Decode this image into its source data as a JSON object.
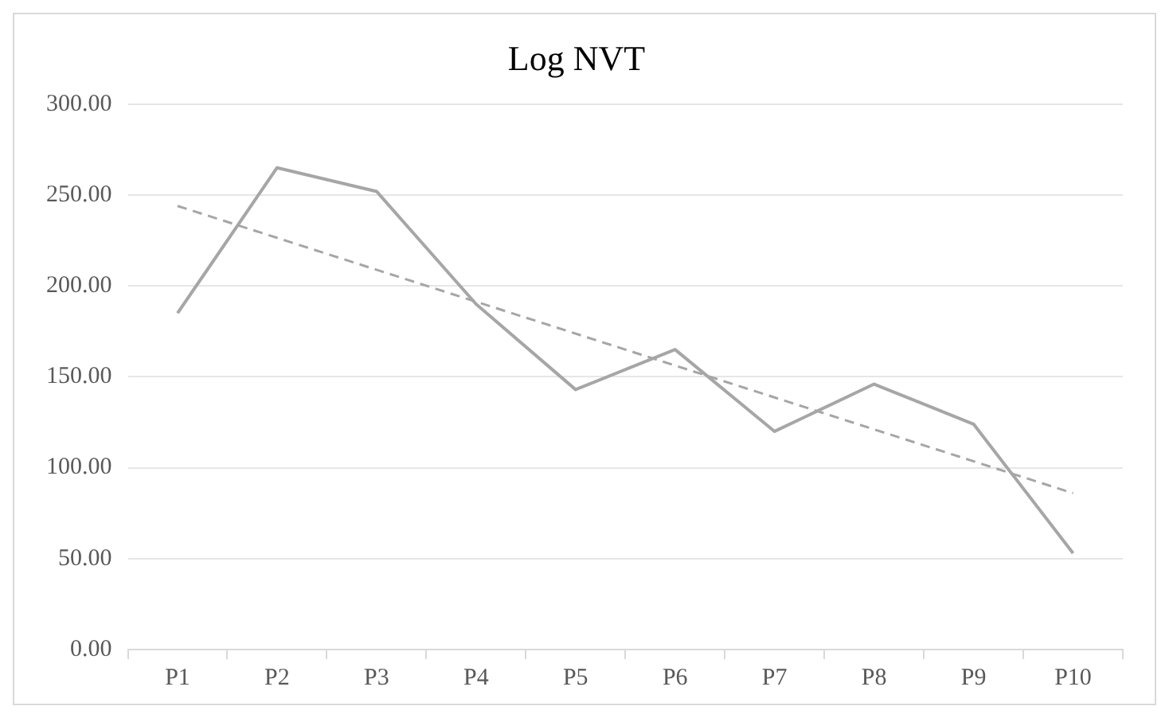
{
  "chart_data": {
    "type": "line",
    "title": "Log NVT",
    "categories": [
      "P1",
      "P2",
      "P3",
      "P4",
      "P5",
      "P6",
      "P7",
      "P8",
      "P9",
      "P10"
    ],
    "series": [
      {
        "color": "#a6a6a6",
        "values": [
          185,
          265,
          252,
          190,
          143,
          165,
          120,
          146,
          124,
          53
        ]
      },
      {
        "type": "line",
        "x": [
          "P1",
          "P10"
        ],
        "values": [
          244,
          86
        ],
        "color": "#a6a6a6",
        "line_style": "dashed"
      }
    ],
    "ylim": [
      0,
      300
    ],
    "yticks": [
      {
        "value": 0,
        "label": "0.00"
      },
      {
        "value": 50,
        "label": "50.00"
      },
      {
        "value": 100,
        "label": "100.00"
      },
      {
        "value": 150,
        "label": "150.00"
      },
      {
        "value": 200,
        "label": "200.00"
      },
      {
        "value": 250,
        "label": "250.00"
      },
      {
        "value": 300,
        "label": "300.00"
      }
    ],
    "grid": "y",
    "legend": false,
    "marker": "none"
  }
}
